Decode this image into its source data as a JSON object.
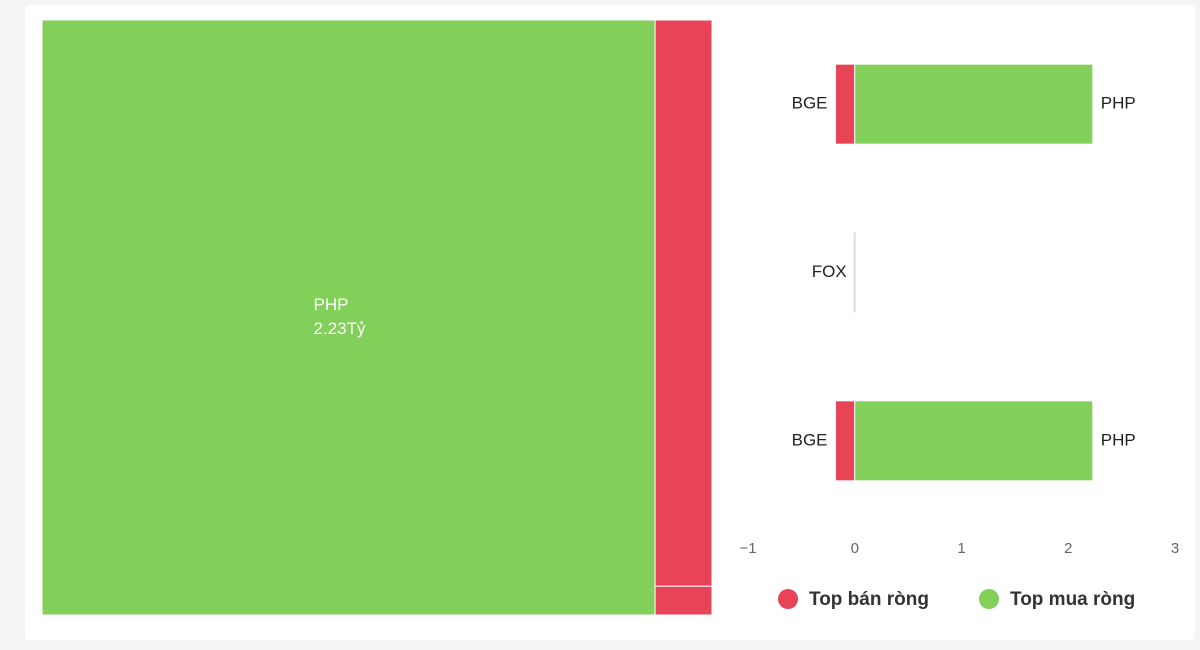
{
  "chart_data": [
    {
      "type": "treemap",
      "items": [
        {
          "name": "PHP",
          "value": 2.23,
          "value_label": "2.23Tỷ",
          "color": "#82cf5a"
        },
        {
          "name": null,
          "value": 0.197,
          "color": "#e84356"
        },
        {
          "name": null,
          "value": 0.01,
          "color": "#e84356"
        }
      ]
    },
    {
      "type": "bar",
      "orientation": "horizontal",
      "series": [
        {
          "name": "Top bán ròng",
          "color": "#e84356",
          "values": [
            -0.18,
            0,
            -0.18
          ],
          "labels": [
            "BGE",
            "FOX",
            "BGE"
          ]
        },
        {
          "name": "Top mua ròng",
          "color": "#82cf5a",
          "values": [
            2.23,
            0,
            2.23
          ],
          "labels": [
            "PHP",
            null,
            "PHP"
          ]
        }
      ],
      "xlim": [
        -1,
        3
      ],
      "xticks": [
        {
          "value": -1,
          "label": "−1"
        },
        0,
        1,
        2,
        3
      ],
      "legend": "bottom"
    }
  ]
}
